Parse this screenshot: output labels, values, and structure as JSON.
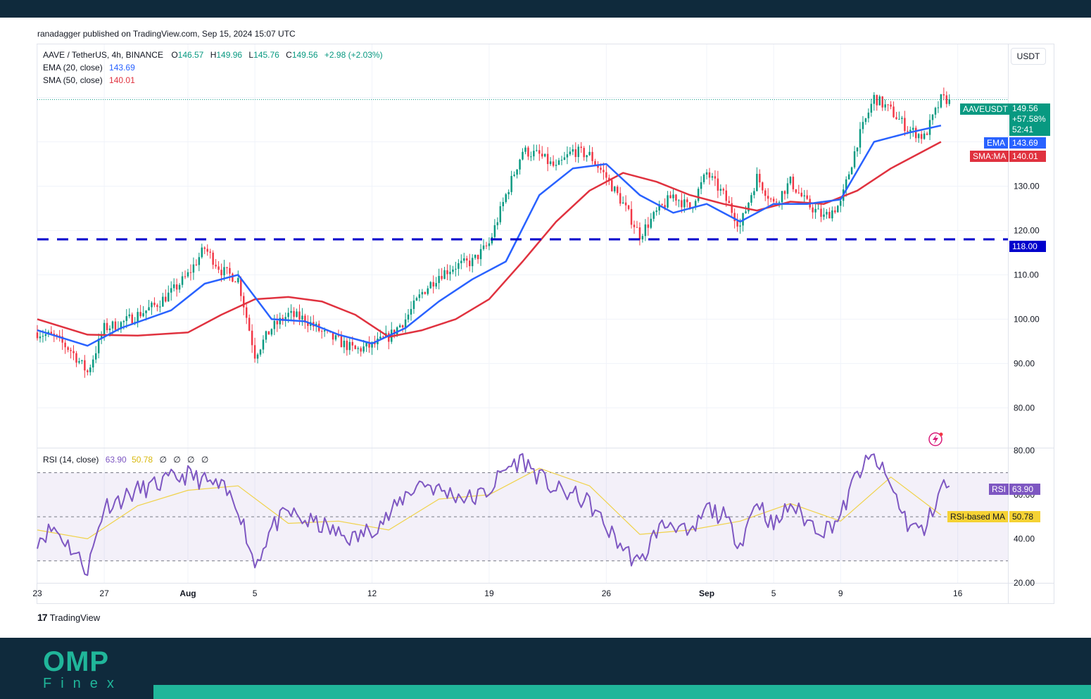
{
  "published": "ranadagger published on TradingView.com, Sep 15, 2024 15:07 UTC",
  "legend": {
    "symbol": "AAVE / TetherUS, 4h, BINANCE",
    "o_label": "O",
    "o_value": "146.57",
    "h_label": "H",
    "h_value": "149.96",
    "l_label": "L",
    "l_value": "145.76",
    "c_label": "C",
    "c_value": "149.56",
    "change": "+2.98 (+2.03%)",
    "ema_label": "EMA (20, close)",
    "ema_value": "143.69",
    "sma_label": "SMA (50, close)",
    "sma_value": "140.01",
    "rsi_label": "RSI (14, close)",
    "rsi_value": "63.90",
    "rsi_ma_value": "50.78",
    "rsi_extra": [
      "∅",
      "∅",
      "∅",
      "∅"
    ]
  },
  "currency_button": "USDT",
  "tags": {
    "symbol_name": "AAVEUSDT",
    "price": "149.56",
    "pct": "+57.58%",
    "countdown": "52:41",
    "ema_name": "EMA",
    "ema_value": "143.69",
    "sma_name": "SMA:MA",
    "sma_value": "140.01",
    "level_value": "118.00",
    "rsi_name": "RSI",
    "rsi_value": "63.90",
    "rsi_ma_name": "RSI-based MA",
    "rsi_ma_value": "50.78"
  },
  "brand": {
    "tradingview": "TradingView",
    "tv_logo": "17",
    "omp": "OMP",
    "finex": "Finex"
  },
  "colors": {
    "up": "#089981",
    "down": "#f23645",
    "ema": "#2962ff",
    "sma": "#e0323f",
    "support": "#0000cc",
    "rsi": "#7e57c2",
    "rsi_ma": "#f0d24a",
    "band_dark": "#0f2a3c",
    "accent": "#20b69a"
  },
  "chart_data": [
    {
      "type": "candlestick",
      "title": "AAVE / TetherUS, 4h, BINANCE",
      "x_tick_labels": [
        "23",
        "27",
        "Aug",
        "5",
        "12",
        "19",
        "26",
        "Sep",
        "5",
        "9",
        "16"
      ],
      "x_tick_dates": [
        "2024-07-23",
        "2024-07-27",
        "2024-08-01",
        "2024-08-05",
        "2024-08-12",
        "2024-08-19",
        "2024-08-26",
        "2024-09-01",
        "2024-09-05",
        "2024-09-09",
        "2024-09-16"
      ],
      "y_ticks": [
        80,
        90,
        100,
        110,
        120,
        130
      ],
      "y_tick_labels": [
        "80.00",
        "90.00",
        "100.00",
        "110.00",
        "120.00",
        "130.00"
      ],
      "ylim": [
        71,
        162
      ],
      "xlim": [
        "2024-07-23",
        "2024-09-19"
      ],
      "support_level": 118.0,
      "last_price": 149.56,
      "close_path": {
        "dates": [
          "2024-07-23",
          "2024-07-24",
          "2024-07-25",
          "2024-07-26",
          "2024-07-27",
          "2024-07-28",
          "2024-07-29",
          "2024-07-30",
          "2024-07-31",
          "2024-08-01",
          "2024-08-02",
          "2024-08-03",
          "2024-08-04",
          "2024-08-05",
          "2024-08-06",
          "2024-08-07",
          "2024-08-08",
          "2024-08-09",
          "2024-08-10",
          "2024-08-11",
          "2024-08-12",
          "2024-08-13",
          "2024-08-14",
          "2024-08-15",
          "2024-08-16",
          "2024-08-17",
          "2024-08-18",
          "2024-08-19",
          "2024-08-20",
          "2024-08-21",
          "2024-08-22",
          "2024-08-23",
          "2024-08-24",
          "2024-08-25",
          "2024-08-26",
          "2024-08-27",
          "2024-08-28",
          "2024-08-29",
          "2024-08-30",
          "2024-08-31",
          "2024-09-01",
          "2024-09-02",
          "2024-09-03",
          "2024-09-04",
          "2024-09-05",
          "2024-09-06",
          "2024-09-07",
          "2024-09-08",
          "2024-09-09",
          "2024-09-10",
          "2024-09-11",
          "2024-09-12",
          "2024-09-13",
          "2024-09-14",
          "2024-09-15"
        ],
        "close": [
          97,
          96,
          93,
          88,
          98,
          99,
          101,
          103,
          106,
          110,
          116,
          111,
          109,
          92,
          98,
          101,
          100,
          97,
          95,
          93,
          94,
          96,
          100,
          106,
          110,
          112,
          113,
          117,
          128,
          138,
          137,
          134,
          138,
          137,
          132,
          126,
          119,
          124,
          128,
          125,
          133,
          128,
          121,
          132,
          126,
          131,
          126,
          123,
          126,
          140,
          150,
          147,
          143,
          141,
          149.56
        ]
      },
      "ema20": {
        "dates": [
          "2024-07-23",
          "2024-07-26",
          "2024-07-28",
          "2024-07-31",
          "2024-08-02",
          "2024-08-04",
          "2024-08-06",
          "2024-08-08",
          "2024-08-10",
          "2024-08-12",
          "2024-08-14",
          "2024-08-16",
          "2024-08-18",
          "2024-08-20",
          "2024-08-22",
          "2024-08-24",
          "2024-08-26",
          "2024-08-28",
          "2024-08-30",
          "2024-09-01",
          "2024-09-03",
          "2024-09-05",
          "2024-09-07",
          "2024-09-09",
          "2024-09-11",
          "2024-09-13",
          "2024-09-15"
        ],
        "values": [
          97.5,
          94,
          98,
          102,
          108,
          110,
          100,
          99.5,
          96.5,
          94.5,
          98,
          104,
          109,
          113,
          128,
          134,
          135,
          128,
          124,
          126,
          122,
          126,
          126,
          127,
          140,
          142,
          143.69
        ]
      },
      "sma50": {
        "dates": [
          "2024-07-23",
          "2024-07-26",
          "2024-07-29",
          "2024-08-01",
          "2024-08-03",
          "2024-08-05",
          "2024-08-07",
          "2024-08-09",
          "2024-08-11",
          "2024-08-13",
          "2024-08-15",
          "2024-08-17",
          "2024-08-19",
          "2024-08-21",
          "2024-08-23",
          "2024-08-25",
          "2024-08-27",
          "2024-08-29",
          "2024-08-31",
          "2024-09-02",
          "2024-09-04",
          "2024-09-06",
          "2024-09-08",
          "2024-09-10",
          "2024-09-12",
          "2024-09-14",
          "2024-09-15"
        ],
        "values": [
          100,
          96.5,
          96.3,
          97,
          101,
          104.5,
          105,
          104,
          101,
          96,
          97.5,
          100,
          104.5,
          113,
          122,
          129,
          133,
          131,
          128,
          126,
          124.5,
          126.5,
          126,
          129,
          134,
          138,
          140.01
        ]
      }
    },
    {
      "type": "line",
      "title": "RSI (14, close)",
      "y_ticks": [
        20,
        40,
        60,
        80
      ],
      "y_tick_labels": [
        "20.00",
        "40.00",
        "60.00",
        "80.00"
      ],
      "ylim": [
        20,
        81
      ],
      "band": [
        30,
        70
      ],
      "midline": 50,
      "series": [
        {
          "name": "RSI",
          "dates": [
            "2024-07-23",
            "2024-07-24",
            "2024-07-25",
            "2024-07-26",
            "2024-07-27",
            "2024-07-28",
            "2024-07-29",
            "2024-07-30",
            "2024-07-31",
            "2024-08-01",
            "2024-08-02",
            "2024-08-03",
            "2024-08-04",
            "2024-08-05",
            "2024-08-06",
            "2024-08-07",
            "2024-08-08",
            "2024-08-09",
            "2024-08-10",
            "2024-08-11",
            "2024-08-12",
            "2024-08-13",
            "2024-08-14",
            "2024-08-15",
            "2024-08-16",
            "2024-08-17",
            "2024-08-18",
            "2024-08-19",
            "2024-08-20",
            "2024-08-21",
            "2024-08-22",
            "2024-08-23",
            "2024-08-24",
            "2024-08-25",
            "2024-08-26",
            "2024-08-27",
            "2024-08-28",
            "2024-08-29",
            "2024-08-30",
            "2024-08-31",
            "2024-09-01",
            "2024-09-02",
            "2024-09-03",
            "2024-09-04",
            "2024-09-05",
            "2024-09-06",
            "2024-09-07",
            "2024-09-08",
            "2024-09-09",
            "2024-09-10",
            "2024-09-11",
            "2024-09-12",
            "2024-09-13",
            "2024-09-14",
            "2024-09-15"
          ],
          "values": [
            40,
            45,
            36,
            26,
            55,
            58,
            62,
            64,
            67,
            69,
            66,
            63,
            55,
            28,
            45,
            52,
            48,
            46,
            42,
            40,
            45,
            50,
            60,
            66,
            62,
            60,
            58,
            62,
            72,
            76,
            68,
            62,
            60,
            56,
            45,
            36,
            28,
            44,
            48,
            40,
            54,
            50,
            38,
            58,
            45,
            56,
            48,
            44,
            50,
            70,
            77,
            64,
            47,
            43,
            63.9
          ]
        },
        {
          "name": "RSI-based MA",
          "dates": [
            "2024-07-23",
            "2024-07-26",
            "2024-07-29",
            "2024-08-01",
            "2024-08-04",
            "2024-08-07",
            "2024-08-10",
            "2024-08-13",
            "2024-08-16",
            "2024-08-19",
            "2024-08-22",
            "2024-08-25",
            "2024-08-28",
            "2024-08-31",
            "2024-09-03",
            "2024-09-06",
            "2024-09-09",
            "2024-09-12",
            "2024-09-15"
          ],
          "values": [
            44,
            40,
            55,
            62,
            64,
            47,
            48,
            44,
            58,
            60,
            72,
            64,
            42,
            44,
            48,
            56,
            48,
            68,
            50.78
          ]
        }
      ]
    }
  ]
}
